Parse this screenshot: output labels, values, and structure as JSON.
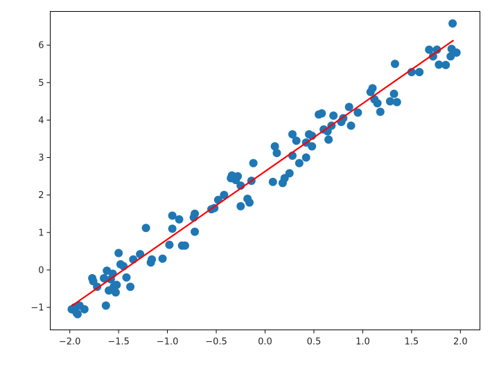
{
  "chart_data": {
    "type": "scatter",
    "title": "",
    "xlabel": "",
    "ylabel": "",
    "xlim": [
      -2.2,
      2.2
    ],
    "ylim": [
      -1.6,
      6.9
    ],
    "xticks": [
      -2.0,
      -1.5,
      -1.0,
      -0.5,
      0.0,
      0.5,
      1.0,
      1.5,
      2.0
    ],
    "xtick_labels": [
      "−2.0",
      "−1.5",
      "−1.0",
      "−0.5",
      "0.0",
      "0.5",
      "1.0",
      "1.5",
      "2.0"
    ],
    "yticks": [
      -1,
      0,
      1,
      2,
      3,
      4,
      5,
      6
    ],
    "ytick_labels": [
      "−1",
      "0",
      "1",
      "2",
      "3",
      "4",
      "5",
      "6"
    ],
    "grid": false,
    "colors": {
      "points": "#1f77b4",
      "fit_line": "#ff0000"
    },
    "series": [
      {
        "kind": "scatter",
        "points": [
          [
            -1.98,
            -1.05
          ],
          [
            -1.95,
            -1.0
          ],
          [
            -1.93,
            -1.15
          ],
          [
            -1.92,
            -1.18
          ],
          [
            -1.9,
            -0.95
          ],
          [
            -1.85,
            -1.05
          ],
          [
            -1.77,
            -0.22
          ],
          [
            -1.76,
            -0.3
          ],
          [
            -1.72,
            -0.45
          ],
          [
            -1.65,
            -0.22
          ],
          [
            -1.63,
            -0.95
          ],
          [
            -1.62,
            -0.02
          ],
          [
            -1.6,
            -0.55
          ],
          [
            -1.58,
            -0.25
          ],
          [
            -1.56,
            -0.1
          ],
          [
            -1.55,
            -0.45
          ],
          [
            -1.53,
            -0.6
          ],
          [
            -1.52,
            -0.4
          ],
          [
            -1.5,
            0.45
          ],
          [
            -1.48,
            0.15
          ],
          [
            -1.45,
            0.1
          ],
          [
            -1.42,
            -0.2
          ],
          [
            -1.38,
            -0.45
          ],
          [
            -1.35,
            0.28
          ],
          [
            -1.28,
            0.42
          ],
          [
            -1.22,
            1.12
          ],
          [
            -1.17,
            0.2
          ],
          [
            -1.16,
            0.28
          ],
          [
            -1.05,
            0.3
          ],
          [
            -0.98,
            0.67
          ],
          [
            -0.95,
            1.1
          ],
          [
            -0.95,
            1.45
          ],
          [
            -0.88,
            1.35
          ],
          [
            -0.85,
            0.65
          ],
          [
            -0.82,
            0.65
          ],
          [
            -0.73,
            1.4
          ],
          [
            -0.72,
            1.5
          ],
          [
            -0.72,
            1.02
          ],
          [
            -0.55,
            1.62
          ],
          [
            -0.52,
            1.65
          ],
          [
            -0.48,
            1.87
          ],
          [
            -0.42,
            2.0
          ],
          [
            -0.35,
            2.45
          ],
          [
            -0.34,
            2.52
          ],
          [
            -0.3,
            2.4
          ],
          [
            -0.28,
            2.5
          ],
          [
            -0.25,
            1.7
          ],
          [
            -0.25,
            2.25
          ],
          [
            -0.18,
            1.9
          ],
          [
            -0.16,
            1.8
          ],
          [
            -0.14,
            2.38
          ],
          [
            -0.12,
            2.85
          ],
          [
            0.08,
            2.35
          ],
          [
            0.1,
            3.3
          ],
          [
            0.12,
            3.12
          ],
          [
            0.18,
            2.32
          ],
          [
            0.2,
            2.45
          ],
          [
            0.25,
            2.58
          ],
          [
            0.28,
            3.62
          ],
          [
            0.28,
            3.05
          ],
          [
            0.32,
            3.45
          ],
          [
            0.35,
            2.85
          ],
          [
            0.42,
            3.0
          ],
          [
            0.42,
            3.4
          ],
          [
            0.45,
            3.62
          ],
          [
            0.48,
            3.3
          ],
          [
            0.48,
            3.58
          ],
          [
            0.55,
            4.15
          ],
          [
            0.58,
            4.18
          ],
          [
            0.6,
            3.75
          ],
          [
            0.64,
            3.7
          ],
          [
            0.65,
            3.48
          ],
          [
            0.68,
            3.85
          ],
          [
            0.7,
            4.12
          ],
          [
            0.78,
            3.95
          ],
          [
            0.8,
            4.05
          ],
          [
            0.86,
            4.35
          ],
          [
            0.88,
            3.85
          ],
          [
            0.95,
            4.2
          ],
          [
            1.08,
            4.75
          ],
          [
            1.1,
            4.85
          ],
          [
            1.12,
            4.55
          ],
          [
            1.15,
            4.45
          ],
          [
            1.18,
            4.22
          ],
          [
            1.28,
            4.5
          ],
          [
            1.32,
            4.7
          ],
          [
            1.33,
            5.5
          ],
          [
            1.35,
            4.48
          ],
          [
            1.5,
            5.28
          ],
          [
            1.58,
            5.28
          ],
          [
            1.68,
            5.88
          ],
          [
            1.72,
            5.7
          ],
          [
            1.76,
            5.88
          ],
          [
            1.78,
            5.48
          ],
          [
            1.85,
            5.47
          ],
          [
            1.9,
            5.7
          ],
          [
            1.91,
            5.9
          ],
          [
            1.92,
            6.58
          ],
          [
            1.96,
            5.8
          ]
        ]
      },
      {
        "kind": "line",
        "x": [
          -1.98,
          1.93
        ],
        "y": [
          -0.96,
          6.13
        ]
      }
    ]
  }
}
